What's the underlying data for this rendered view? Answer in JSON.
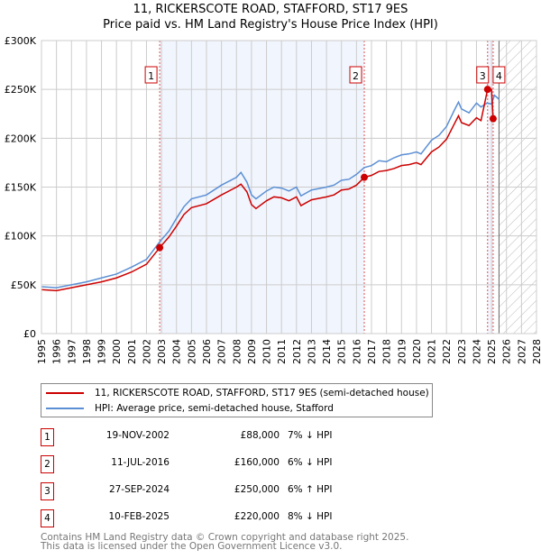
{
  "title": "11, RICKERSCOTE ROAD, STAFFORD, ST17 9ES",
  "subtitle": "Price paid vs. HM Land Registry's House Price Index (HPI)",
  "chart_data": {
    "type": "line",
    "xlim": [
      1995,
      2028
    ],
    "ylim": [
      0,
      300000
    ],
    "x_ticks": [
      "1995",
      "1996",
      "1997",
      "1998",
      "1999",
      "2000",
      "2001",
      "2002",
      "2003",
      "2004",
      "2005",
      "2006",
      "2007",
      "2008",
      "2009",
      "2010",
      "2011",
      "2012",
      "2013",
      "2014",
      "2015",
      "2016",
      "2017",
      "2018",
      "2019",
      "2020",
      "2021",
      "2022",
      "2023",
      "2024",
      "2025",
      "2026",
      "2027",
      "2028"
    ],
    "y_ticks": [
      {
        "v": 0,
        "l": "£0"
      },
      {
        "v": 50000,
        "l": "£50K"
      },
      {
        "v": 100000,
        "l": "£100K"
      },
      {
        "v": 150000,
        "l": "£150K"
      },
      {
        "v": 200000,
        "l": "£200K"
      },
      {
        "v": 250000,
        "l": "£250K"
      },
      {
        "v": 300000,
        "l": "£300K"
      }
    ],
    "grid": true,
    "forecast_from": 2025.5,
    "series": [
      {
        "name": "11, RICKERSCOTE ROAD, STAFFORD, ST17 9ES (semi-detached house)",
        "color": "#cc0000",
        "x": [
          1995,
          1996,
          1997,
          1998,
          1999,
          2000,
          2001,
          2002,
          2002.88,
          2003.5,
          2004,
          2004.5,
          2005,
          2006,
          2007,
          2008,
          2008.3,
          2008.7,
          2009,
          2009.3,
          2010,
          2010.5,
          2011,
          2011.5,
          2012,
          2012.3,
          2013,
          2014,
          2014.5,
          2015,
          2015.5,
          2016,
          2016.52,
          2017,
          2017.5,
          2018,
          2018.5,
          2019,
          2019.5,
          2020,
          2020.3,
          2021,
          2021.5,
          2022,
          2022.5,
          2022.8,
          2023,
          2023.5,
          2024,
          2024.3,
          2024.74,
          2025.0,
          2025.11
        ],
        "y": [
          45000,
          44000,
          47000,
          50000,
          53000,
          57000,
          63000,
          71000,
          88000,
          99000,
          110000,
          122000,
          129000,
          133000,
          142000,
          150000,
          153000,
          145000,
          132000,
          128000,
          136000,
          140000,
          139000,
          136000,
          140000,
          131000,
          137000,
          140000,
          142000,
          147000,
          148000,
          152000,
          160000,
          162000,
          166000,
          167000,
          169000,
          172000,
          173000,
          175000,
          173000,
          186000,
          191000,
          199000,
          214000,
          223000,
          216000,
          213000,
          221000,
          218000,
          250000,
          250000,
          220000
        ]
      },
      {
        "name": "HPI: Average price, semi-detached house, Stafford",
        "color": "#5b8fd4",
        "x": [
          1995,
          1996,
          1997,
          1998,
          1999,
          2000,
          2001,
          2002,
          2002.88,
          2003.5,
          2004,
          2004.5,
          2005,
          2006,
          2007,
          2008,
          2008.3,
          2008.7,
          2009,
          2009.3,
          2010,
          2010.5,
          2011,
          2011.5,
          2012,
          2012.3,
          2013,
          2014,
          2014.5,
          2015,
          2015.5,
          2016,
          2016.52,
          2017,
          2017.5,
          2018,
          2018.5,
          2019,
          2019.5,
          2020,
          2020.3,
          2021,
          2021.5,
          2022,
          2022.5,
          2022.8,
          2023,
          2023.5,
          2024,
          2024.3,
          2024.7,
          2025,
          2025.2,
          2025.5
        ],
        "y": [
          48000,
          47000,
          50000,
          53000,
          57000,
          61000,
          68000,
          76000,
          94000,
          105000,
          118000,
          130000,
          138000,
          142000,
          152000,
          160000,
          165000,
          155000,
          142000,
          138000,
          146000,
          150000,
          149000,
          146000,
          150000,
          141000,
          147000,
          150000,
          152000,
          157000,
          158000,
          163000,
          170000,
          172000,
          177000,
          176000,
          180000,
          183000,
          184000,
          186000,
          184000,
          198000,
          203000,
          212000,
          228000,
          237000,
          230000,
          226000,
          236000,
          232000,
          236000,
          235000,
          244000,
          240000
        ]
      }
    ],
    "sales": [
      {
        "id": "1",
        "x": 2002.88,
        "y": 88000
      },
      {
        "id": "2",
        "x": 2016.52,
        "y": 160000
      },
      {
        "id": "3",
        "x": 2024.74,
        "y": 250000
      },
      {
        "id": "4",
        "x": 2025.11,
        "y": 220000
      }
    ]
  },
  "legend": {
    "property": "11, RICKERSCOTE ROAD, STAFFORD, ST17 9ES (semi-detached house)",
    "hpi": "HPI: Average price, semi-detached house, Stafford"
  },
  "transactions": [
    {
      "id": "1",
      "date": "19-NOV-2002",
      "price": "£88,000",
      "hpi": "7% ↓ HPI"
    },
    {
      "id": "2",
      "date": "11-JUL-2016",
      "price": "£160,000",
      "hpi": "6% ↓ HPI"
    },
    {
      "id": "3",
      "date": "27-SEP-2024",
      "price": "£250,000",
      "hpi": "6% ↑ HPI"
    },
    {
      "id": "4",
      "date": "10-FEB-2025",
      "price": "£220,000",
      "hpi": "8% ↓ HPI"
    }
  ],
  "footer": {
    "line1": "Contains HM Land Registry data © Crown copyright and database right 2025.",
    "line2": "This data is licensed under the Open Government Licence v3.0."
  }
}
